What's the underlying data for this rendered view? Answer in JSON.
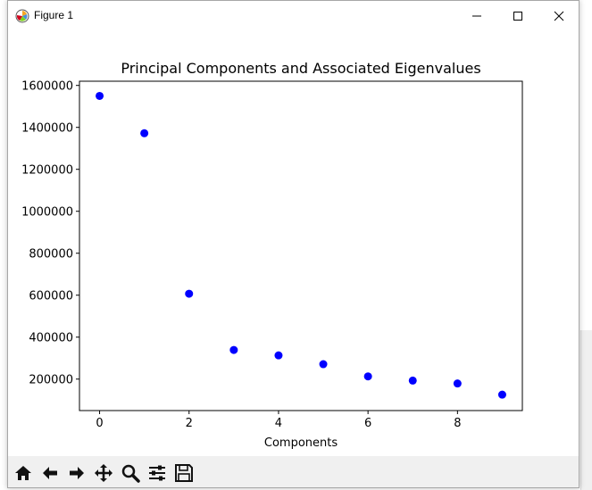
{
  "window": {
    "title": "Figure 1"
  },
  "toolbar": {
    "tools": [
      "home-icon",
      "back-arrow-icon",
      "forward-arrow-icon",
      "pan-icon",
      "zoom-icon",
      "configure-subplots-icon",
      "save-icon"
    ]
  },
  "colors": {
    "marker": "#0000ff",
    "axes": "#000000",
    "figure_bg": "#ffffff",
    "window_chrome": "#f0f0f0"
  },
  "chart_data": {
    "type": "scatter",
    "title": "Principal Components and Associated Eigenvalues",
    "xlabel": "Components",
    "ylabel": "",
    "xlim": [
      -0.45,
      9.45
    ],
    "ylim": [
      50000,
      1620000
    ],
    "x_ticks": [
      0,
      2,
      4,
      6,
      8
    ],
    "x_tick_labels": [
      "0",
      "2",
      "4",
      "6",
      "8"
    ],
    "y_ticks": [
      200000,
      400000,
      600000,
      800000,
      1000000,
      1200000,
      1400000,
      1600000
    ],
    "y_tick_labels": [
      "200000",
      "400000",
      "600000",
      "800000",
      "1000000",
      "1200000",
      "1400000",
      "1600000"
    ],
    "grid": false,
    "series": [
      {
        "x": [
          0,
          1,
          2,
          3,
          4,
          5,
          6,
          7,
          8,
          9
        ],
        "y": [
          1550000,
          1372000,
          607000,
          339000,
          313000,
          271000,
          213000,
          193000,
          179000,
          126000
        ]
      }
    ]
  }
}
